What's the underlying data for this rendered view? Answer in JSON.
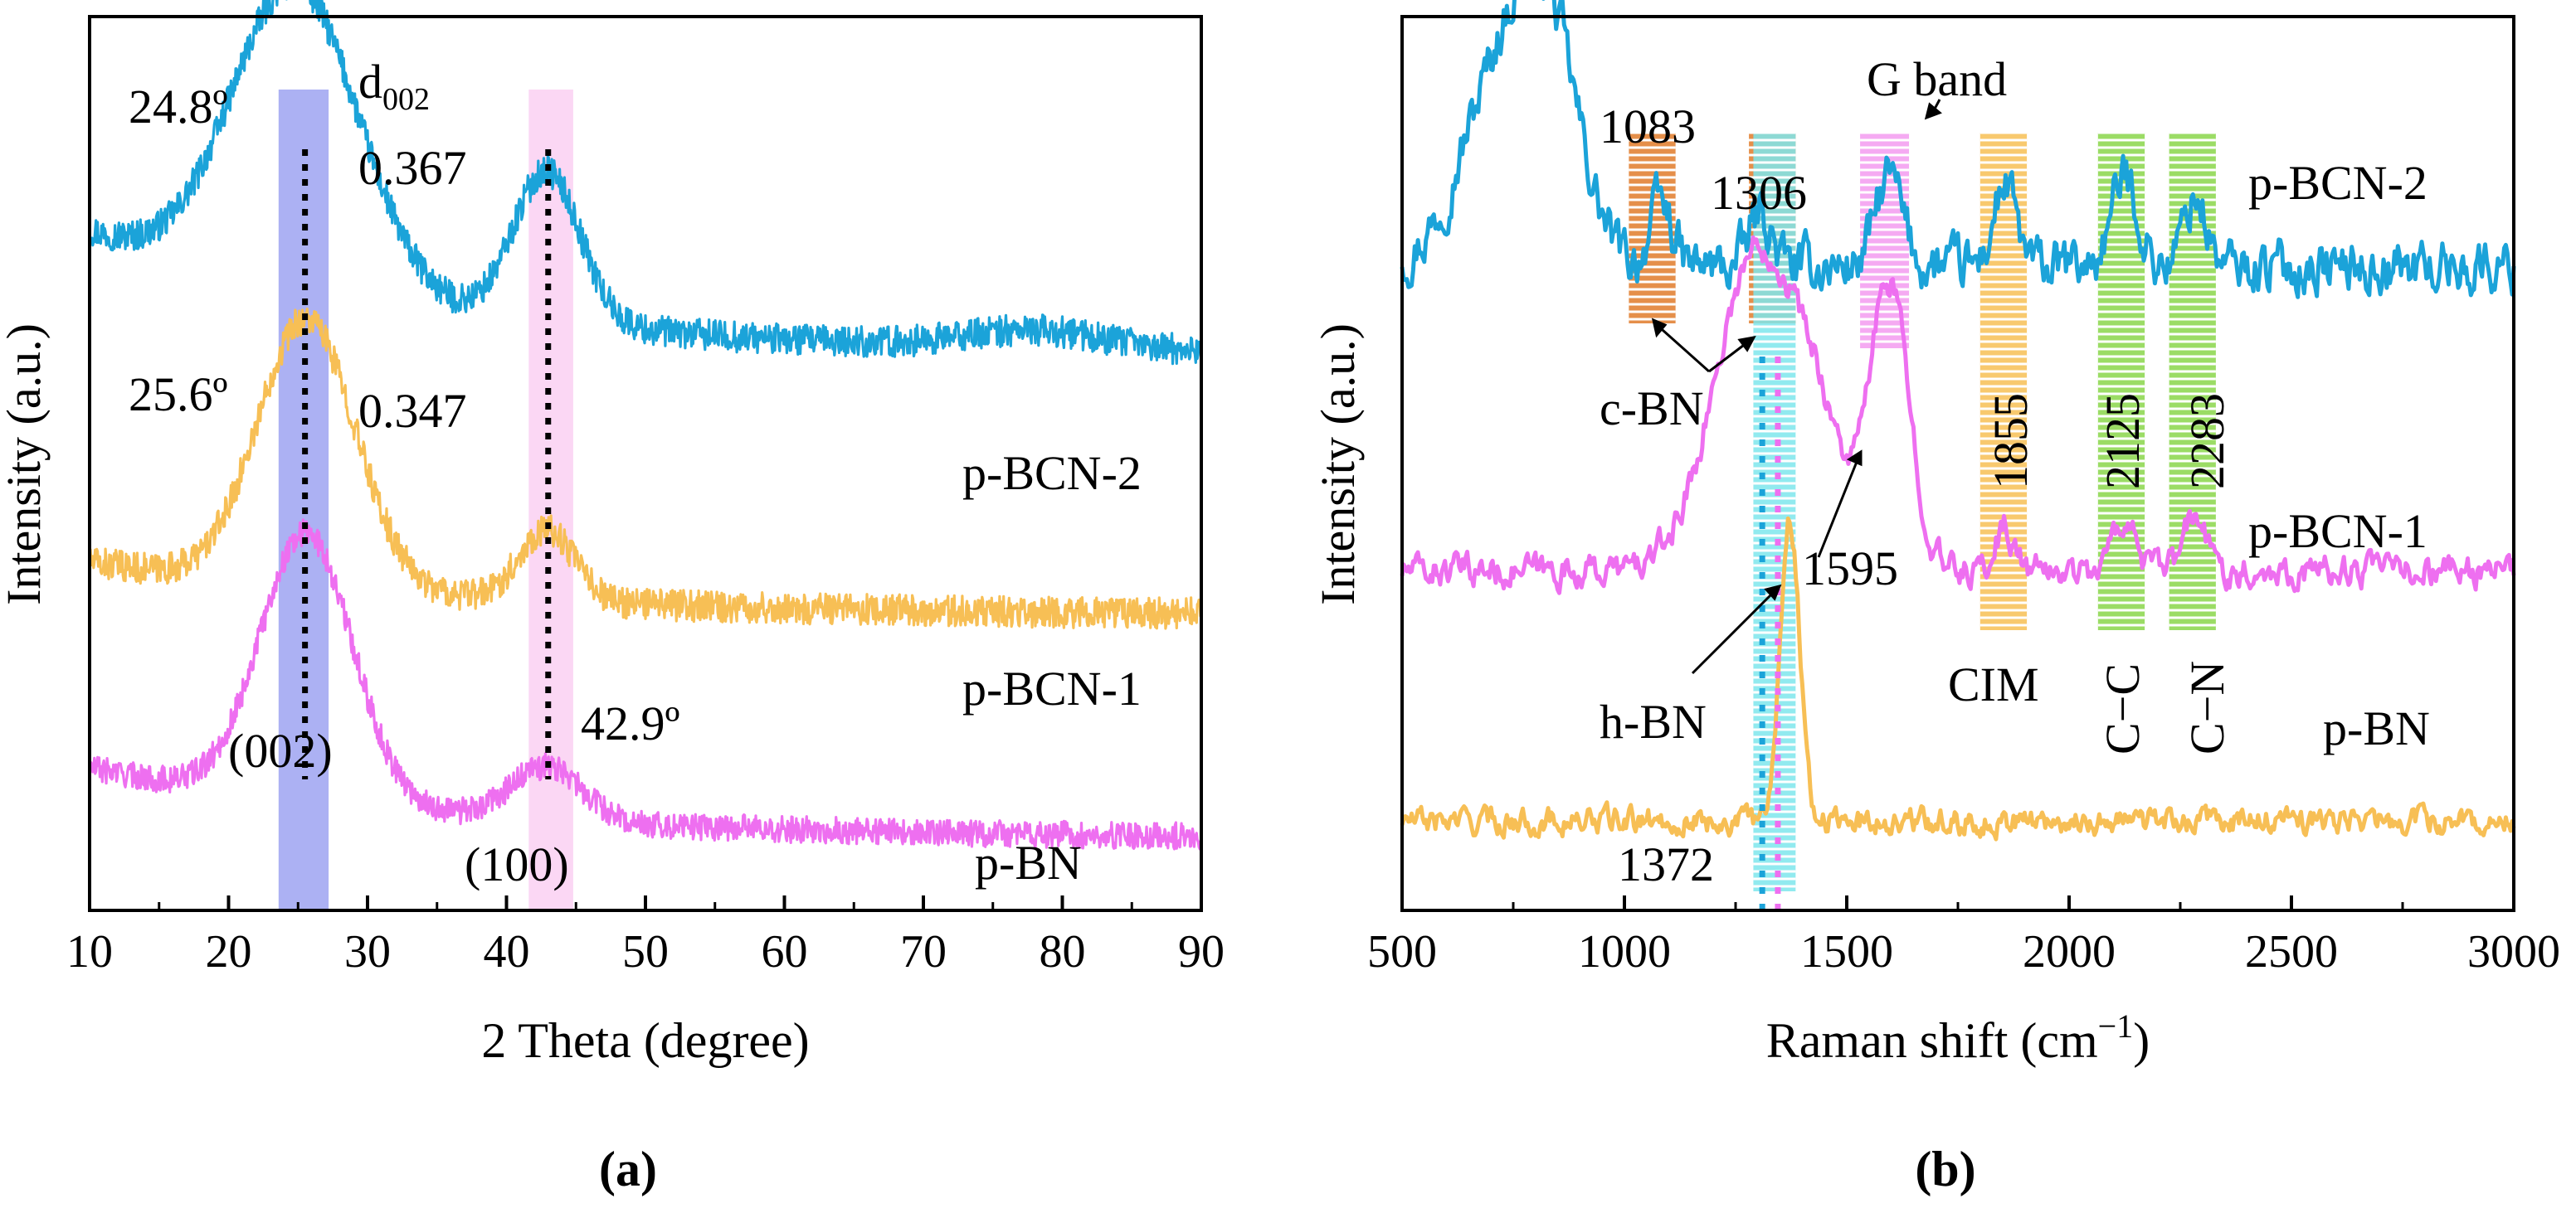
{
  "chart_data": [
    {
      "type": "line",
      "panel_label": "(a)",
      "xlabel": "2 Theta (degree)",
      "ylabel": "Intensity (a.u.)",
      "xlim": [
        10,
        90
      ],
      "xticks": [
        "10",
        "20",
        "30",
        "40",
        "50",
        "60",
        "70",
        "80",
        "90"
      ],
      "series": [
        {
          "name": "p-BCN-2",
          "color": "#1ba3d9",
          "offset": 0.62,
          "baseline": 0.0,
          "peaks": [
            [
              24.8,
              0.34,
              4.5
            ],
            [
              42.9,
              0.17,
              2.4
            ],
            [
              78,
              0.02,
              5
            ]
          ],
          "decay": 0.14,
          "noise": 0.035
        },
        {
          "name": "p-BCN-1",
          "color": "#f7bf55",
          "offset": 0.33,
          "baseline": 0.0,
          "peaks": [
            [
              25.6,
              0.3,
              3.5
            ],
            [
              42.9,
              0.08,
              2.0
            ]
          ],
          "decay": 0.06,
          "noise": 0.035
        },
        {
          "name": "p-BN",
          "color": "#ee6ff0",
          "offset": 0.08,
          "baseline": 0.0,
          "peaks": [
            [
              25.6,
              0.3,
              3.3
            ],
            [
              42.9,
              0.06,
              2.5
            ]
          ],
          "decay": 0.08,
          "noise": 0.03
        }
      ],
      "annotations": {
        "peak_24": "24.8º",
        "d002": "d",
        "d002_sub": "002",
        "d_367": "0.367",
        "peak_25": "25.6º",
        "d_347": "0.347",
        "peak_42": "42.9º",
        "hkl_002": "(002)",
        "hkl_100": "(100)"
      },
      "highlight_bands": [
        {
          "from": 23.6,
          "to": 27.2,
          "color": "#a3a9f2"
        },
        {
          "from": 41.6,
          "to": 44.8,
          "color": "#fbd3f3"
        }
      ],
      "guide_lines": [
        25.5,
        43.0
      ]
    },
    {
      "type": "line",
      "panel_label": "(b)",
      "xlabel": "Raman shift (cm",
      "xlabel_sup": "−1",
      "xlabel_end": ")",
      "ylabel": "Intensity (a.u.)",
      "xlim": [
        500,
        3000
      ],
      "xticks": [
        "500",
        "1000",
        "1500",
        "2000",
        "2500",
        "3000"
      ],
      "series": [
        {
          "name": "p-BCN-2",
          "color": "#1ba3d9",
          "offset": 0.72,
          "peaks": [
            [
              720,
              0.2,
              90
            ],
            [
              830,
              0.22,
              70
            ],
            [
              1083,
              0.07,
              25
            ],
            [
              1306,
              0.06,
              25
            ],
            [
              1595,
              0.1,
              30
            ],
            [
              1855,
              0.09,
              25
            ],
            [
              2125,
              0.1,
              30
            ],
            [
              2283,
              0.08,
              25
            ]
          ],
          "noise": 0.05
        },
        {
          "name": "p-BCN-1",
          "color": "#ee6ff0",
          "offset": 0.38,
          "peaks": [
            [
              1300,
              0.36,
              95
            ],
            [
              1440,
              0.1,
              55
            ],
            [
              1595,
              0.32,
              45
            ],
            [
              1855,
              0.05,
              20
            ],
            [
              2125,
              0.06,
              25
            ],
            [
              2283,
              0.06,
              25
            ]
          ],
          "noise": 0.03
        },
        {
          "name": "p-BN",
          "color": "#f7bf55",
          "offset": 0.1,
          "peaks": [
            [
              1372,
              0.34,
              22
            ]
          ],
          "noise": 0.025
        }
      ],
      "annotations": {
        "g_band": "G band",
        "v1083": "1083",
        "v1306": "1306",
        "c_bn": "c-BN",
        "v1595": "1595",
        "h_bn": "h-BN",
        "v1372": "1372",
        "cim": "CIM",
        "v1855": "1855",
        "v2125": "2125",
        "v2283": "2283",
        "cc": "C−C",
        "cn": "C−N"
      },
      "highlight_bands": [
        {
          "from": 1010,
          "to": 1115,
          "color": "#e07b2a"
        },
        {
          "from": 1280,
          "to": 1385,
          "color": "#e07b2a"
        },
        {
          "from": 1290,
          "to": 1385,
          "color": "#7ee6ec"
        },
        {
          "from": 1530,
          "to": 1640,
          "color": "#f39bf0"
        },
        {
          "from": 1800,
          "to": 1905,
          "color": "#f7bf55"
        },
        {
          "from": 2065,
          "to": 2170,
          "color": "#8ad64a"
        },
        {
          "from": 2225,
          "to": 2330,
          "color": "#8ad64a"
        }
      ]
    }
  ]
}
